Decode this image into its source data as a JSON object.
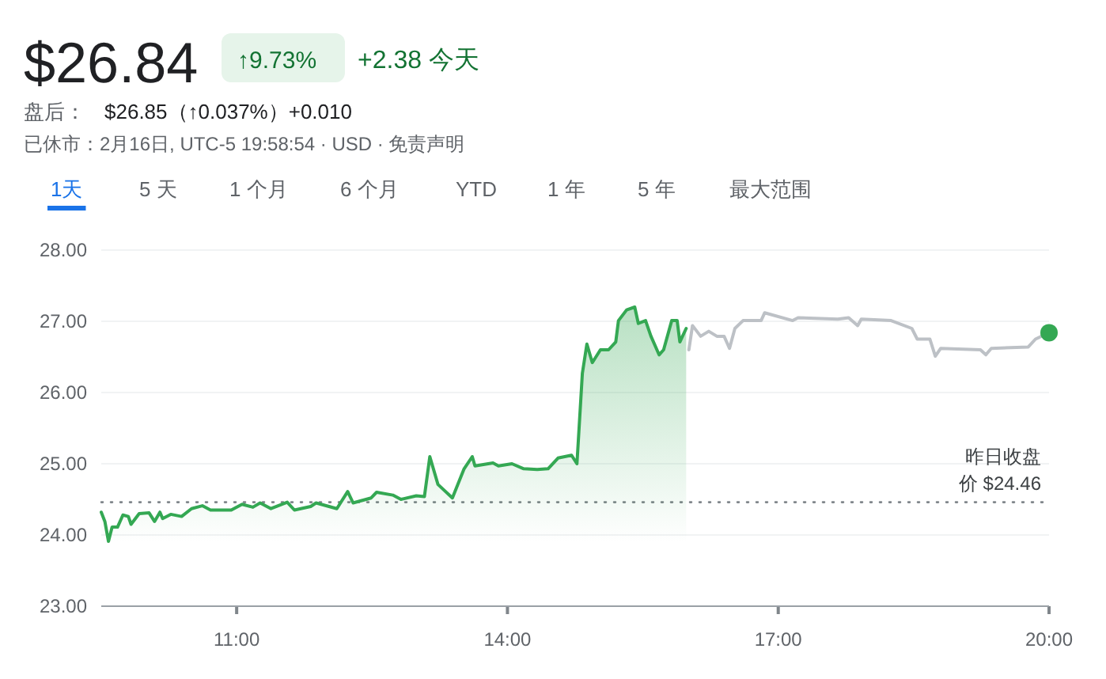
{
  "chart_data": {
    "type": "line",
    "title": "$26.84",
    "annotations": [
      "↑9.73%",
      "+2.38 今天",
      "盘后：",
      "$26.85（↑0.037%）+0.010",
      "已休市：2月16日, UTC-5 19:58:54 · USD · 免责声明",
      "1天",
      "5 天",
      "1 个月",
      "6 个月",
      "YTD",
      "1 年",
      "5 年",
      "最大范围"
    ],
    "xlim": [
      9.5,
      20
    ],
    "ylim": [
      23,
      28
    ],
    "xticks": [
      {
        "value": 11,
        "label": "11:00"
      },
      {
        "value": 14,
        "label": "14:00"
      },
      {
        "value": 17,
        "label": "17:00"
      },
      {
        "value": 20,
        "label": "20:00"
      }
    ],
    "yticks": [
      {
        "value": 23,
        "label": "23.00"
      },
      {
        "value": 24,
        "label": "24.00"
      },
      {
        "value": 25,
        "label": "25.00"
      },
      {
        "value": 26,
        "label": "26.00"
      },
      {
        "value": 27,
        "label": "27.00"
      },
      {
        "value": 28,
        "label": "28.00"
      }
    ],
    "grid": "y",
    "ref_lines": [
      {
        "axis": "y",
        "value": 24.46,
        "label": "昨日收盘价 $24.46",
        "line_style": "dotted",
        "color": "#80868b"
      }
    ],
    "series": [
      {
        "type": "area",
        "color": "#34a853",
        "x": [
          9.5,
          9.54,
          9.58,
          9.62,
          9.68,
          9.74,
          9.8,
          9.83,
          9.92,
          10.03,
          10.09,
          10.15,
          10.18,
          10.27,
          10.39,
          10.5,
          10.62,
          10.71,
          10.94,
          11.06,
          11.18,
          11.26,
          11.38,
          11.56,
          11.64,
          11.82,
          11.88,
          12.11,
          12.23,
          12.29,
          12.49,
          12.55,
          12.73,
          12.82,
          12.99,
          13.08,
          13.14,
          13.23,
          13.39,
          13.52,
          13.61,
          13.64,
          13.84,
          13.9,
          14.05,
          14.18,
          14.33,
          14.45,
          14.56,
          14.71,
          14.77,
          14.83,
          14.88,
          14.94,
          15.03,
          15.12,
          15.2,
          15.23,
          15.32,
          15.41,
          15.45,
          15.53,
          15.59,
          15.68,
          15.73,
          15.82,
          15.88,
          15.91,
          15.98
        ],
        "values": [
          24.32,
          24.19,
          23.91,
          24.11,
          24.11,
          24.28,
          24.26,
          24.15,
          24.3,
          24.31,
          24.19,
          24.32,
          24.23,
          24.29,
          24.26,
          24.37,
          24.41,
          24.35,
          24.35,
          24.43,
          24.39,
          24.45,
          24.37,
          24.46,
          24.35,
          24.4,
          24.45,
          24.37,
          24.61,
          24.45,
          24.52,
          24.6,
          24.56,
          24.5,
          24.55,
          24.54,
          25.1,
          24.71,
          24.52,
          24.93,
          25.1,
          24.97,
          25.01,
          24.97,
          25.0,
          24.93,
          24.92,
          24.93,
          25.08,
          25.12,
          25.0,
          26.27,
          26.68,
          26.42,
          26.6,
          26.6,
          26.71,
          27.01,
          27.16,
          27.2,
          26.97,
          27.01,
          26.79,
          26.53,
          26.6,
          27.01,
          27.01,
          26.71,
          26.9
        ]
      },
      {
        "type": "line",
        "color": "#bdc1c6",
        "x": [
          16.01,
          16.05,
          16.14,
          16.23,
          16.32,
          16.4,
          16.46,
          16.52,
          16.61,
          16.81,
          16.85,
          17.16,
          17.22,
          17.66,
          17.78,
          17.88,
          17.92,
          18.25,
          18.48,
          18.54,
          18.68,
          18.74,
          18.8,
          19.24,
          19.3,
          19.36,
          19.77,
          19.85,
          20
        ],
        "values": [
          26.6,
          26.94,
          26.79,
          26.86,
          26.79,
          26.79,
          26.62,
          26.9,
          27.01,
          27.01,
          27.12,
          27.01,
          27.05,
          27.03,
          27.05,
          26.94,
          27.03,
          27.01,
          26.9,
          26.75,
          26.75,
          26.51,
          26.62,
          26.6,
          26.53,
          26.62,
          26.64,
          26.75,
          26.84
        ]
      },
      {
        "type": "scatter",
        "color": "#34a853",
        "x": [
          20
        ],
        "values": [
          26.84
        ]
      }
    ]
  }
}
